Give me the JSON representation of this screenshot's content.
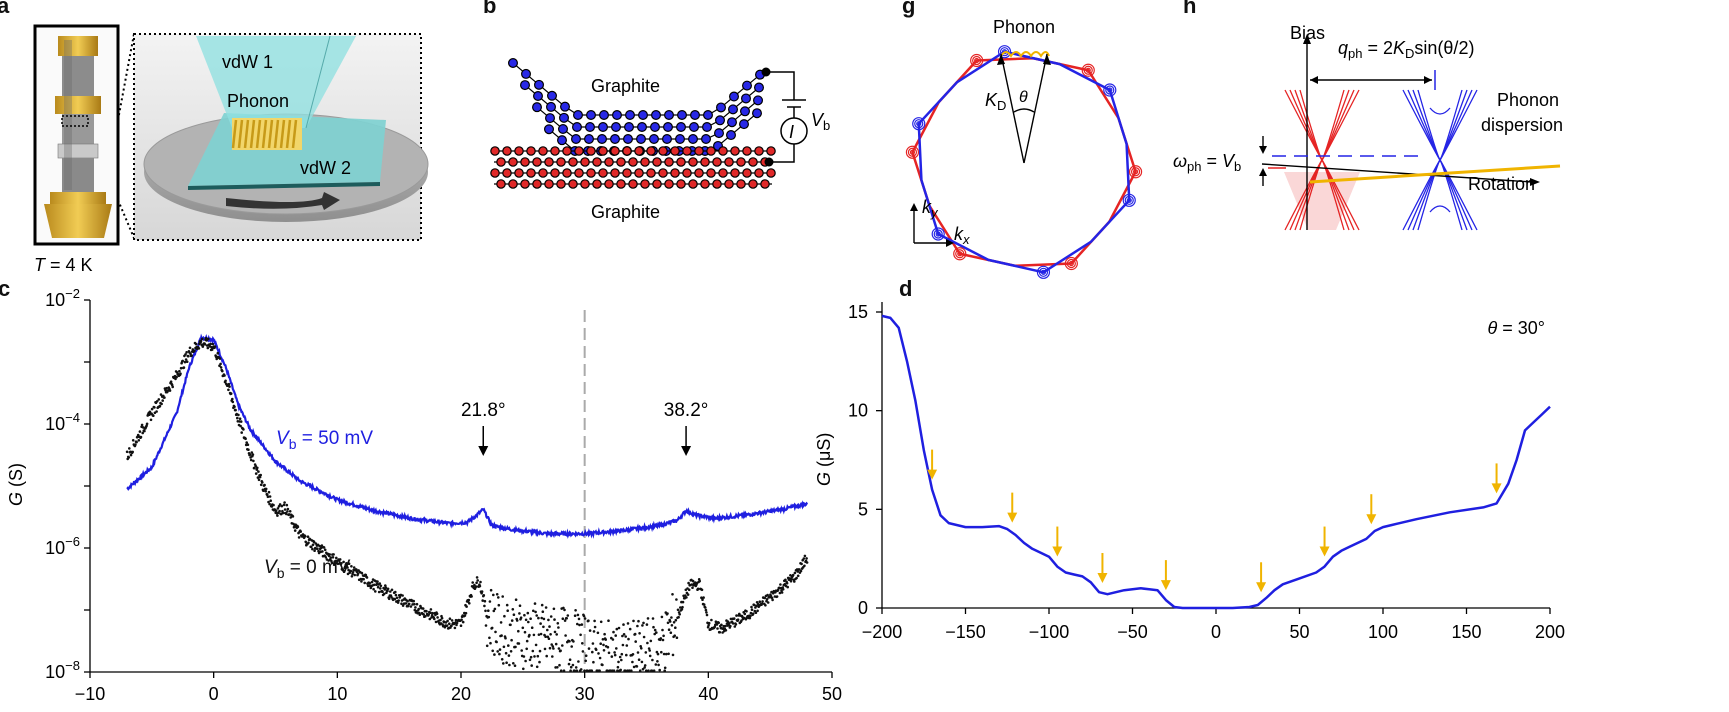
{
  "figure": {
    "letters": {
      "a": "a",
      "b": "b",
      "c": "c",
      "d": "d",
      "g": "g",
      "h": "h"
    },
    "panel_a": {
      "vdw1": "vdW 1",
      "phonon": "Phonon",
      "vdw2": "vdW 2",
      "temp_var": "T",
      "temp_val": " = 4 K"
    },
    "panel_b": {
      "top_label": "Graphite",
      "bottom_label": "Graphite",
      "current": "I",
      "bias_var": "V",
      "bias_sub": "b"
    },
    "panel_g": {
      "phonon": "Phonon",
      "theta": "θ",
      "kd_var": "K",
      "kd_sub": "D",
      "ky_var": "k",
      "ky_sub": "y",
      "kx_var": "k",
      "kx_sub": "x"
    },
    "panel_h": {
      "bias": "Bias",
      "q_var": "q",
      "q_sub": "ph",
      "q_eq": " = 2",
      "q_k": "K",
      "q_ksub": "D",
      "q_tail": "sin(θ/2)",
      "omega_var": "ω",
      "omega_sub": "ph",
      "omega_eq": " = ",
      "omega_v": "V",
      "omega_vsub": "b",
      "phonon_line1": "Phonon",
      "phonon_line2": "dispersion",
      "rotation": "Rotation"
    }
  },
  "chart_data": [
    {
      "type": "line",
      "panel": "c",
      "ylabel_var": "G",
      "ylabel_unit": " (S)",
      "yscale": "log",
      "xlim": [
        -10,
        50
      ],
      "ylim": [
        1e-08,
        0.01
      ],
      "xticks": [
        "−10",
        "0",
        "10",
        "20",
        "30",
        "40",
        "50"
      ],
      "yticks": [
        {
          "base": "10",
          "exp": "−8"
        },
        {
          "base": "10",
          "exp": "−6"
        },
        {
          "base": "10",
          "exp": "−4"
        },
        {
          "base": "10",
          "exp": "−2"
        }
      ],
      "vline_x": 30,
      "annotations": [
        {
          "x": 21.8,
          "text": "21.8°"
        },
        {
          "x": 38.2,
          "text": "38.2°"
        }
      ],
      "series": [
        {
          "name_var": "V",
          "name_sub": "b",
          "name_val": " = 50 mV",
          "color": "#1f1fe0",
          "x": [
            -7,
            -5,
            -3,
            -2,
            -1,
            0,
            1,
            2,
            3,
            5,
            7,
            10,
            13,
            16,
            19,
            20.5,
            21.2,
            21.8,
            22.5,
            24,
            27,
            30,
            33,
            36,
            37.5,
            38.2,
            39,
            40.5,
            43,
            46,
            48
          ],
          "y": [
            9e-06,
            2e-05,
            0.00015,
            0.0008,
            0.0025,
            0.0023,
            0.0008,
            0.0002,
            8e-05,
            2.5e-05,
            1.2e-05,
            6e-06,
            4e-06,
            3e-06,
            2.5e-06,
            2.6e-06,
            3.3e-06,
            4.2e-06,
            2.3e-06,
            2e-06,
            1.7e-06,
            1.7e-06,
            1.9e-06,
            2.3e-06,
            2.8e-06,
            4e-06,
            3.4e-06,
            3e-06,
            3.4e-06,
            4.2e-06,
            5.2e-06
          ]
        },
        {
          "name_var": "V",
          "name_sub": "b",
          "name_val": " = 0 mV",
          "color": "#111111",
          "x": [
            -7,
            -5,
            -3,
            -2,
            -1,
            0,
            1,
            2,
            3,
            4,
            5,
            5.8,
            7,
            10,
            13,
            16,
            19,
            20,
            21,
            21.5,
            22,
            23,
            25,
            27,
            29,
            31,
            33,
            35,
            36.5,
            37.5,
            38.5,
            39.3,
            40,
            41,
            43,
            45,
            47,
            48
          ],
          "y": [
            3e-05,
            0.00015,
            0.0006,
            0.0014,
            0.0021,
            0.0018,
            0.0005,
            0.00012,
            3.2e-05,
            1e-05,
            4e-06,
            4.5e-06,
            1.6e-06,
            6e-07,
            2.5e-07,
            1.2e-07,
            6e-08,
            6e-08,
            2.5e-07,
            3e-07,
            1e-07,
            5e-08,
            4e-08,
            3.5e-08,
            3e-08,
            2e-08,
            1.8e-08,
            2e-08,
            3e-08,
            8e-08,
            2.5e-07,
            2.6e-07,
            6e-08,
            5e-08,
            8e-08,
            1.6e-07,
            3.5e-07,
            7e-07
          ]
        }
      ]
    },
    {
      "type": "line",
      "panel": "d",
      "ylabel_var": "G",
      "ylabel_unit": " (μS)",
      "xlim": [
        -200,
        200
      ],
      "ylim": [
        0,
        15
      ],
      "xticks": [
        "−200",
        "−150",
        "−100",
        "−50",
        "0",
        "50",
        "100",
        "150",
        "200"
      ],
      "yticks": [
        "0",
        "5",
        "10",
        "15"
      ],
      "annotation": {
        "var": "θ",
        "val": " = 30°"
      },
      "arrows_x": [
        -170,
        -122,
        -95,
        -68,
        -30,
        27,
        65,
        93,
        168
      ],
      "series": [
        {
          "color": "#1f1fe0",
          "x": [
            -200,
            -195,
            -190,
            -185,
            -180,
            -175,
            -170,
            -165,
            -160,
            -150,
            -140,
            -130,
            -125,
            -120,
            -115,
            -110,
            -105,
            -100,
            -95,
            -90,
            -85,
            -80,
            -75,
            -70,
            -65,
            -60,
            -55,
            -50,
            -45,
            -40,
            -35,
            -30,
            -25,
            -20,
            -10,
            0,
            10,
            20,
            25,
            30,
            35,
            40,
            50,
            60,
            65,
            70,
            75,
            80,
            90,
            95,
            100,
            105,
            120,
            140,
            160,
            168,
            175,
            180,
            185,
            190,
            195,
            200
          ],
          "y": [
            14.8,
            14.7,
            14.2,
            12.5,
            10.5,
            8.0,
            6.0,
            4.7,
            4.3,
            4.1,
            4.1,
            4.15,
            4.0,
            3.7,
            3.3,
            3.0,
            2.8,
            2.6,
            2.1,
            1.8,
            1.7,
            1.6,
            1.3,
            0.8,
            0.7,
            0.8,
            0.9,
            0.95,
            1.0,
            0.95,
            0.9,
            0.4,
            0.05,
            0.0,
            0.0,
            0.0,
            0.0,
            0.05,
            0.15,
            0.5,
            0.9,
            1.2,
            1.5,
            1.8,
            2.1,
            2.6,
            2.9,
            3.1,
            3.5,
            3.9,
            4.1,
            4.2,
            4.5,
            4.85,
            5.1,
            5.3,
            6.3,
            7.5,
            9.0,
            9.4,
            9.8,
            10.2
          ]
        }
      ]
    }
  ]
}
